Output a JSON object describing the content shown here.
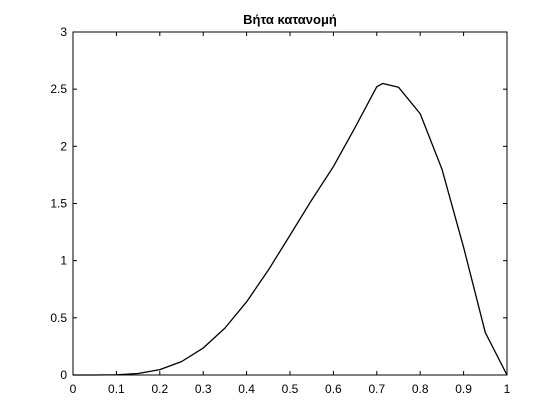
{
  "chart_data": {
    "type": "line",
    "title": "Βήτα κατανομή",
    "xlabel": "",
    "ylabel": "",
    "xlim": [
      0,
      1
    ],
    "ylim": [
      0,
      3
    ],
    "xticks": [
      "0",
      "0.1",
      "0.2",
      "0.3",
      "0.4",
      "0.5",
      "0.6",
      "0.7",
      "0.8",
      "0.9",
      "1"
    ],
    "yticks": [
      "0",
      "0.5",
      "1",
      "1.5",
      "2",
      "2.5",
      "3"
    ],
    "grid": false,
    "legend": "none",
    "line_color": "#000000",
    "series": [
      {
        "x": [
          0,
          0.05,
          0.1,
          0.15,
          0.2,
          0.25,
          0.3,
          0.35,
          0.4,
          0.45,
          0.5,
          0.55,
          0.6,
          0.65,
          0.7,
          0.714,
          0.75,
          0.8,
          0.85,
          0.9,
          0.95,
          1
        ],
        "values": [
          0,
          0.0001,
          0.002,
          0.013,
          0.047,
          0.117,
          0.236,
          0.41,
          0.64,
          0.917,
          1.222,
          1.531,
          1.823,
          2.165,
          2.522,
          2.55,
          2.517,
          2.285,
          1.802,
          1.117,
          0.371,
          0
        ]
      }
    ]
  }
}
